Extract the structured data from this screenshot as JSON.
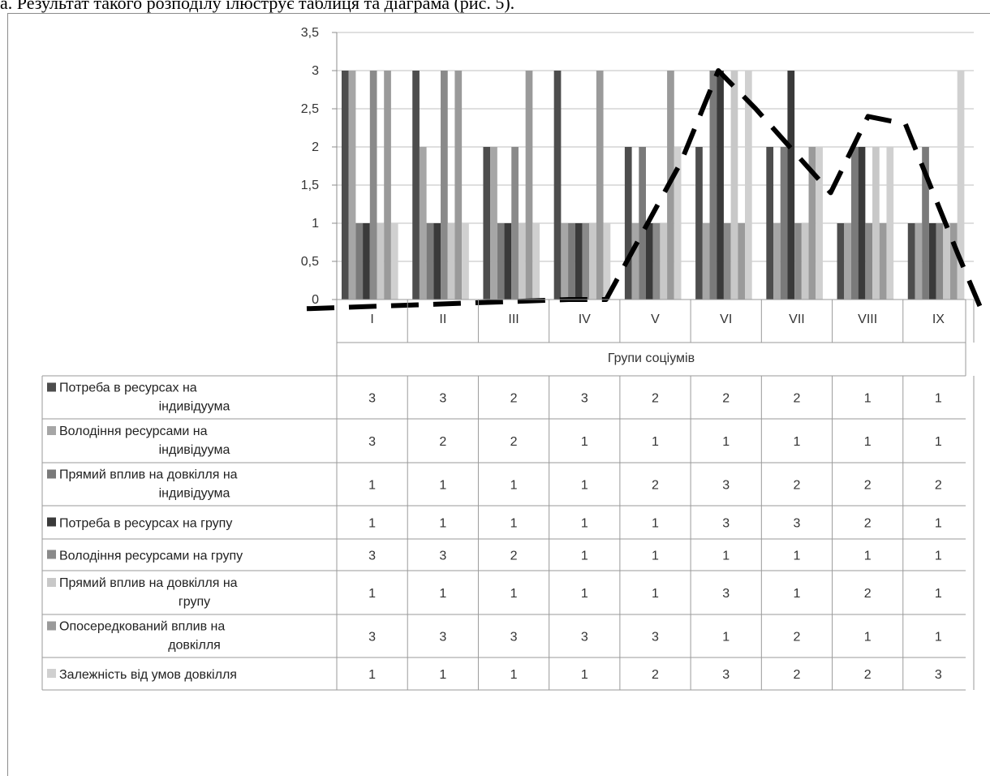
{
  "caption": "а. Результат такого розподілу ілюструє таблиця та діаграма (рис. 5).",
  "chart_data": {
    "type": "bar",
    "xlabel": "Групи соціумів",
    "ylabel": "",
    "ylim": [
      0,
      3.5
    ],
    "y_ticks": [
      "0",
      "0,5",
      "1",
      "1,5",
      "2",
      "2,5",
      "3",
      "3,5"
    ],
    "grid": true,
    "legend": "data-table",
    "categories": [
      "I",
      "II",
      "III",
      "IV",
      "V",
      "VI",
      "VII",
      "VIII",
      "IX"
    ],
    "series": [
      {
        "name": "Потреба в ресурсах на індивідуума",
        "color": "#4d4d4d",
        "values": [
          3,
          3,
          2,
          3,
          2,
          2,
          2,
          1,
          1
        ]
      },
      {
        "name": "Володіння ресурсами на індивідуума",
        "color": "#a6a6a6",
        "values": [
          3,
          2,
          2,
          1,
          1,
          1,
          1,
          1,
          1
        ]
      },
      {
        "name": "Прямий вплив на довкілля на індивідуума",
        "color": "#7a7a7a",
        "values": [
          1,
          1,
          1,
          1,
          2,
          3,
          2,
          2,
          2
        ]
      },
      {
        "name": "Потреба в ресурсах на групу",
        "color": "#3a3a3a",
        "values": [
          1,
          1,
          1,
          1,
          1,
          3,
          3,
          2,
          1
        ]
      },
      {
        "name": "Володіння ресурсами на групу",
        "color": "#8a8a8a",
        "values": [
          3,
          3,
          2,
          1,
          1,
          1,
          1,
          1,
          1
        ]
      },
      {
        "name": "Прямий вплив на довкілля на групу",
        "color": "#c8c8c8",
        "values": [
          1,
          1,
          1,
          1,
          1,
          3,
          1,
          2,
          1
        ]
      },
      {
        "name": "Опосередкований вплив на довкілля",
        "color": "#9a9a9a",
        "values": [
          3,
          3,
          3,
          3,
          3,
          1,
          2,
          1,
          1
        ]
      },
      {
        "name": "Залежність від умов довкілля",
        "color": "#d0d0d0",
        "values": [
          1,
          1,
          1,
          1,
          2,
          3,
          2,
          2,
          3
        ]
      }
    ],
    "annotation_curve": {
      "style": "dashed",
      "color": "#000000",
      "x": [
        0.5,
        4.0,
        4.5,
        5.5,
        6.0,
        6.5,
        7.5,
        8.0,
        8.5,
        9.2,
        9.5
      ],
      "y": [
        -0.12,
        0.0,
        0.0,
        1.8,
        3.0,
        2.5,
        1.4,
        2.4,
        2.3,
        0.6,
        -0.1
      ]
    }
  }
}
